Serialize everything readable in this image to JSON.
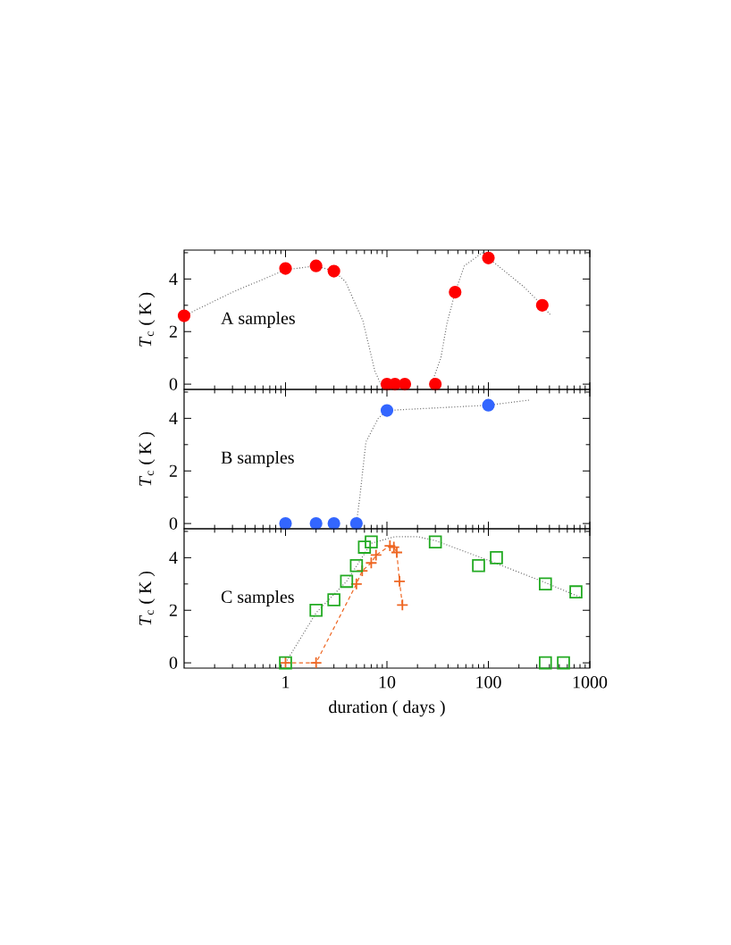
{
  "chart_data": [
    {
      "type": "scatter",
      "ylabel": "*T*$_{c}$ ( K )",
      "annotations": [
        "A samples"
      ],
      "log": "x",
      "xlim": [
        0.1,
        1000
      ],
      "ylim": [
        -0.2,
        5.1
      ],
      "xticks": [
        1,
        10,
        100,
        1000
      ],
      "yticks": [
        0,
        2,
        4
      ],
      "tick_labels": "y",
      "series": [
        {
          "type": "line",
          "x": [
            0.1,
            0.3,
            1,
            2,
            3,
            3.9,
            5.8,
            7.6,
            8.7
          ],
          "values": [
            2.6,
            3.5,
            4.35,
            4.5,
            4.3,
            3.9,
            2.4,
            0.5,
            0
          ],
          "color": "#666666",
          "line_style": "dotted",
          "marker": "none"
        },
        {
          "type": "line",
          "x": [
            27.5,
            34,
            39,
            47,
            58,
            87,
            100,
            224,
            340,
            415
          ],
          "values": [
            0,
            1.0,
            2.3,
            3.5,
            4.5,
            5.0,
            4.8,
            3.7,
            3.0,
            2.6
          ],
          "color": "#666666",
          "line_style": "dotted",
          "marker": "none"
        },
        {
          "type": "scatter",
          "x": [
            0.1,
            1,
            2,
            3,
            10,
            12,
            15,
            30,
            47,
            100,
            340
          ],
          "values": [
            2.6,
            4.4,
            4.5,
            4.3,
            0,
            0,
            0,
            0,
            3.5,
            4.8,
            3.0
          ],
          "color": "#ff0000",
          "marker": "circle"
        }
      ]
    },
    {
      "type": "scatter",
      "ylabel": "*T*$_{c}$ ( K )",
      "annotations": [
        "B samples"
      ],
      "log": "x",
      "xlim": [
        0.1,
        1000
      ],
      "ylim": [
        -0.2,
        5.1
      ],
      "xticks": [
        1,
        10,
        100,
        1000
      ],
      "yticks": [
        0,
        2,
        4
      ],
      "tick_labels": "y",
      "series": [
        {
          "type": "line",
          "x": [
            5,
            5.4,
            6.2,
            8.2,
            10,
            100,
            260
          ],
          "values": [
            0,
            1.0,
            3.1,
            4.0,
            4.3,
            4.5,
            4.7
          ],
          "color": "#666666",
          "line_style": "dotted",
          "marker": "none"
        },
        {
          "type": "scatter",
          "x": [
            1,
            2,
            3,
            5,
            10,
            100
          ],
          "values": [
            0,
            0,
            0,
            0,
            4.3,
            4.5
          ],
          "color": "#3366ff",
          "marker": "circle"
        }
      ]
    },
    {
      "type": "scatter",
      "ylabel": "*T*$_{c}$ ( K )",
      "xlabel": "duration ( days )",
      "annotations": [
        "C samples"
      ],
      "log": "x",
      "xlim": [
        0.1,
        1000
      ],
      "ylim": [
        -0.2,
        5.1
      ],
      "xticks": [
        1,
        10,
        100,
        1000
      ],
      "yticks": [
        0,
        2,
        4
      ],
      "series": [
        {
          "type": "line",
          "x": [
            1,
            2,
            4,
            7,
            12,
            20,
            30,
            100,
            365,
            800
          ],
          "values": [
            0,
            1.9,
            3.1,
            4.55,
            4.8,
            4.8,
            4.65,
            3.9,
            3.05,
            2.5
          ],
          "color": "#666666",
          "line_style": "dotted",
          "marker": "none"
        },
        {
          "type": "line",
          "x": [
            1,
            2,
            5,
            5.7,
            7,
            7.8,
            10.7,
            11.7,
            12.5,
            13.3,
            14.2
          ],
          "values": [
            0,
            0,
            3.0,
            3.5,
            3.8,
            4.1,
            4.45,
            4.4,
            4.2,
            3.1,
            2.2
          ],
          "color": "#ee6622",
          "line_style": "dashed",
          "marker": "cross"
        },
        {
          "type": "scatter",
          "x": [
            1,
            2,
            3,
            4,
            5,
            6,
            7,
            30,
            80,
            120,
            365,
            365,
            550,
            730
          ],
          "values": [
            0,
            2.0,
            2.4,
            3.1,
            3.7,
            4.4,
            4.6,
            4.6,
            3.7,
            4.0,
            3.0,
            0,
            0,
            2.7
          ],
          "color": "#22aa22",
          "marker": "square"
        }
      ]
    }
  ]
}
